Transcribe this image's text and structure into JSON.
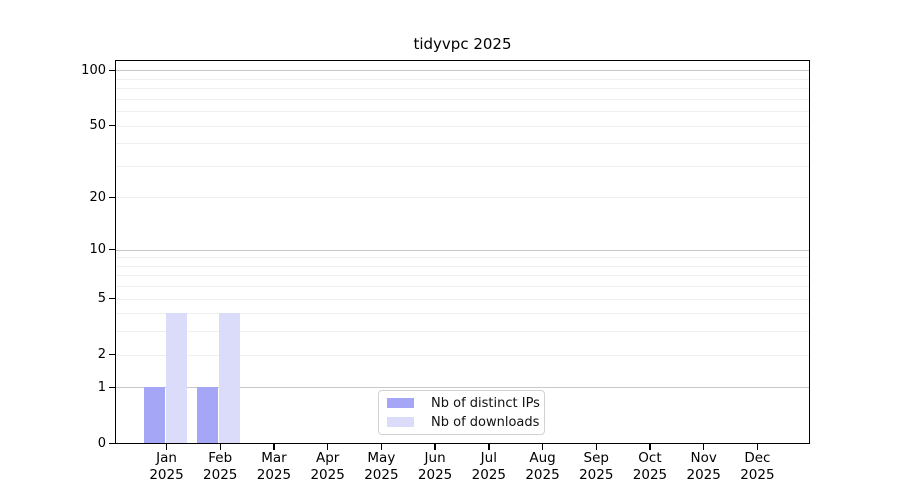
{
  "title": "tidyvpc 2025",
  "colors": {
    "bar_distinct_ips": "#a6a6f7",
    "bar_downloads": "#dbdbfa",
    "grid_major": "#c8c8c8",
    "grid_minor": "#efefef",
    "axis": "#000000",
    "legend_border": "#d2d2d2",
    "background": "#ffffff"
  },
  "chart_data": {
    "type": "bar",
    "title": "tidyvpc 2025",
    "categories": [
      "Jan",
      "Feb",
      "Mar",
      "Apr",
      "May",
      "Jun",
      "Jul",
      "Aug",
      "Sep",
      "Oct",
      "Nov",
      "Dec"
    ],
    "category_year": "2025",
    "series": [
      {
        "name": "Nb of distinct IPs",
        "color": "#a6a6f7",
        "values": [
          1,
          1,
          0,
          0,
          0,
          0,
          0,
          0,
          0,
          0,
          0,
          0
        ]
      },
      {
        "name": "Nb of downloads",
        "color": "#dbdbfa",
        "values": [
          4,
          4,
          0,
          0,
          0,
          0,
          0,
          0,
          0,
          0,
          0,
          0
        ]
      }
    ],
    "xlabel": "",
    "ylabel": "",
    "y_scale": "log1p",
    "ylim": [
      0,
      115
    ],
    "y_ticks_labeled": [
      0,
      1,
      2,
      5,
      10,
      20,
      50,
      100
    ],
    "y_gridlines_major": [
      1,
      10,
      100
    ],
    "y_gridlines_minor": [
      2,
      3,
      4,
      5,
      6,
      7,
      8,
      9,
      20,
      30,
      40,
      50,
      60,
      70,
      80,
      90
    ],
    "grid": true,
    "legend_position": "inside-bottom-center"
  }
}
